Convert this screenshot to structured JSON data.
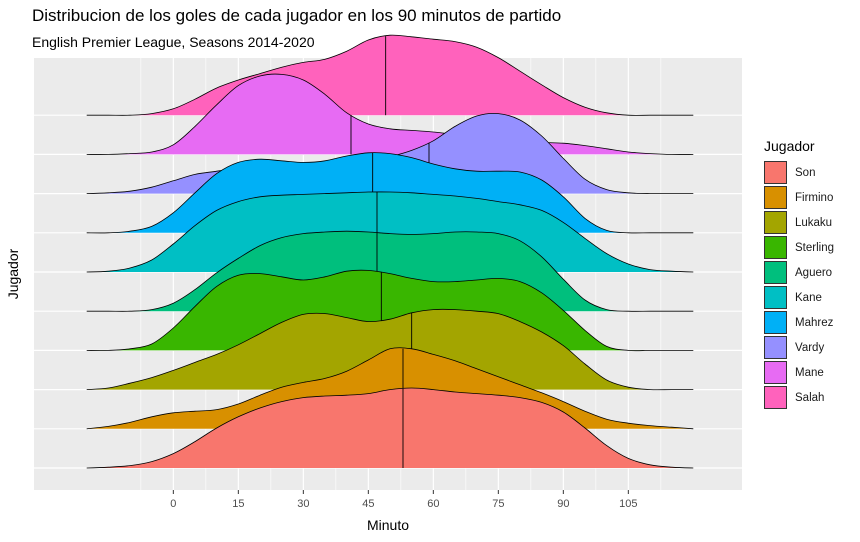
{
  "chart_data": {
    "type": "ridgeline",
    "title": "Distribucion de los goles de cada jugador en los 90 minutos de partido",
    "subtitle": "English Premier League, Seasons 2014-2020",
    "xlabel": "Minuto",
    "ylabel": "Jugador",
    "xlim": [
      -25,
      125
    ],
    "x_ticks": [
      0,
      15,
      30,
      45,
      60,
      75,
      90,
      105
    ],
    "grid": true,
    "legend": {
      "title": "Jugador",
      "placement": "right"
    },
    "x": [
      -20,
      -15,
      -10,
      -5,
      0,
      5,
      10,
      15,
      20,
      25,
      30,
      35,
      40,
      45,
      50,
      55,
      60,
      65,
      70,
      75,
      80,
      85,
      90,
      95,
      100,
      105,
      110,
      115,
      120
    ],
    "series": [
      {
        "name": "Son",
        "color": "#F8766D",
        "median": 53,
        "density": [
          0.0,
          0.01,
          0.03,
          0.08,
          0.18,
          0.33,
          0.5,
          0.64,
          0.75,
          0.83,
          0.88,
          0.9,
          0.91,
          0.93,
          0.98,
          1.0,
          0.98,
          0.95,
          0.93,
          0.91,
          0.88,
          0.82,
          0.7,
          0.5,
          0.28,
          0.12,
          0.04,
          0.01,
          0.0
        ]
      },
      {
        "name": "Firmino",
        "color": "#D89000",
        "median": 53,
        "density": [
          0.0,
          0.03,
          0.08,
          0.15,
          0.2,
          0.22,
          0.24,
          0.31,
          0.42,
          0.52,
          0.58,
          0.63,
          0.72,
          0.86,
          1.0,
          1.0,
          0.93,
          0.85,
          0.75,
          0.65,
          0.55,
          0.45,
          0.34,
          0.22,
          0.12,
          0.07,
          0.04,
          0.02,
          0.0
        ]
      },
      {
        "name": "Lukaku",
        "color": "#A3A500",
        "median": 55,
        "density": [
          0.0,
          0.02,
          0.08,
          0.15,
          0.24,
          0.34,
          0.44,
          0.56,
          0.7,
          0.84,
          0.94,
          0.95,
          0.9,
          0.85,
          0.88,
          0.96,
          1.0,
          1.0,
          0.98,
          0.95,
          0.85,
          0.72,
          0.55,
          0.32,
          0.12,
          0.03,
          0.0,
          0.0,
          0.0
        ]
      },
      {
        "name": "Sterling",
        "color": "#39B600",
        "median": 48,
        "density": [
          0.0,
          0.0,
          0.02,
          0.08,
          0.28,
          0.55,
          0.8,
          0.94,
          0.96,
          0.92,
          0.88,
          0.92,
          0.99,
          1.0,
          0.96,
          0.9,
          0.86,
          0.86,
          0.88,
          0.9,
          0.86,
          0.72,
          0.5,
          0.25,
          0.05,
          0.0,
          0.0,
          0.0,
          0.0
        ]
      },
      {
        "name": "Aguero",
        "color": "#00BF7D",
        "median": 47,
        "density": [
          0.0,
          0.0,
          0.0,
          0.02,
          0.1,
          0.27,
          0.48,
          0.66,
          0.82,
          0.92,
          0.97,
          0.99,
          1.0,
          0.99,
          0.97,
          0.96,
          0.97,
          0.99,
          0.99,
          0.97,
          0.88,
          0.68,
          0.4,
          0.14,
          0.02,
          0.0,
          0.0,
          0.0,
          0.0
        ]
      },
      {
        "name": "Kane",
        "color": "#00BFC4",
        "median": 47,
        "density": [
          0.0,
          0.01,
          0.05,
          0.15,
          0.35,
          0.58,
          0.77,
          0.88,
          0.94,
          0.96,
          0.97,
          0.98,
          0.99,
          1.0,
          1.0,
          0.99,
          0.97,
          0.95,
          0.92,
          0.88,
          0.84,
          0.77,
          0.62,
          0.42,
          0.23,
          0.1,
          0.03,
          0.01,
          0.0
        ]
      },
      {
        "name": "Mahrez",
        "color": "#00B0F6",
        "median": 46,
        "density": [
          0.0,
          0.0,
          0.02,
          0.08,
          0.25,
          0.5,
          0.74,
          0.88,
          0.92,
          0.9,
          0.88,
          0.9,
          0.96,
          1.0,
          0.99,
          0.94,
          0.86,
          0.8,
          0.77,
          0.77,
          0.76,
          0.66,
          0.45,
          0.18,
          0.03,
          0.0,
          0.0,
          0.0,
          0.0
        ]
      },
      {
        "name": "Vardy",
        "color": "#9590FF",
        "median": 59,
        "density": [
          0.0,
          0.01,
          0.03,
          0.08,
          0.16,
          0.24,
          0.28,
          0.32,
          0.36,
          0.38,
          0.38,
          0.38,
          0.38,
          0.4,
          0.46,
          0.54,
          0.66,
          0.84,
          0.97,
          1.0,
          0.92,
          0.72,
          0.44,
          0.18,
          0.05,
          0.01,
          0.0,
          0.0,
          0.0
        ]
      },
      {
        "name": "Mane",
        "color": "#E76BF3",
        "median": 41,
        "density": [
          0.0,
          0.0,
          0.01,
          0.03,
          0.12,
          0.35,
          0.62,
          0.86,
          0.98,
          1.0,
          0.93,
          0.75,
          0.52,
          0.38,
          0.32,
          0.3,
          0.28,
          0.25,
          0.22,
          0.19,
          0.17,
          0.15,
          0.14,
          0.11,
          0.07,
          0.03,
          0.01,
          0.0,
          0.0
        ]
      },
      {
        "name": "Salah",
        "color": "#FF62BC",
        "median": 49,
        "density": [
          0.0,
          0.0,
          0.0,
          0.02,
          0.08,
          0.2,
          0.34,
          0.44,
          0.52,
          0.6,
          0.66,
          0.7,
          0.8,
          0.94,
          1.0,
          0.98,
          0.95,
          0.92,
          0.85,
          0.72,
          0.55,
          0.38,
          0.22,
          0.1,
          0.03,
          0.0,
          0.0,
          0.0,
          0.0
        ]
      }
    ]
  }
}
